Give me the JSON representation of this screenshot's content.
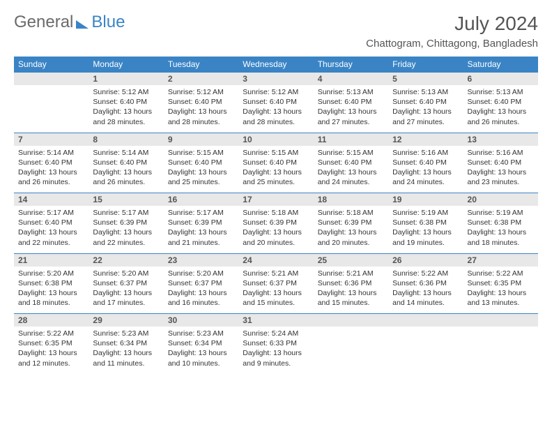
{
  "logo": {
    "part1": "General",
    "part2": "Blue"
  },
  "title": "July 2024",
  "location": "Chattogram, Chittagong, Bangladesh",
  "weekdays": [
    "Sunday",
    "Monday",
    "Tuesday",
    "Wednesday",
    "Thursday",
    "Friday",
    "Saturday"
  ],
  "colors": {
    "header_bg": "#3a84c5",
    "header_text": "#ffffff",
    "daynum_bg": "#e8e8e8",
    "rule": "#3a84c5",
    "text": "#333333",
    "title_text": "#555555"
  },
  "weeks": [
    [
      null,
      {
        "n": "1",
        "sr": "Sunrise: 5:12 AM",
        "ss": "Sunset: 6:40 PM",
        "d1": "Daylight: 13 hours",
        "d2": "and 28 minutes."
      },
      {
        "n": "2",
        "sr": "Sunrise: 5:12 AM",
        "ss": "Sunset: 6:40 PM",
        "d1": "Daylight: 13 hours",
        "d2": "and 28 minutes."
      },
      {
        "n": "3",
        "sr": "Sunrise: 5:12 AM",
        "ss": "Sunset: 6:40 PM",
        "d1": "Daylight: 13 hours",
        "d2": "and 28 minutes."
      },
      {
        "n": "4",
        "sr": "Sunrise: 5:13 AM",
        "ss": "Sunset: 6:40 PM",
        "d1": "Daylight: 13 hours",
        "d2": "and 27 minutes."
      },
      {
        "n": "5",
        "sr": "Sunrise: 5:13 AM",
        "ss": "Sunset: 6:40 PM",
        "d1": "Daylight: 13 hours",
        "d2": "and 27 minutes."
      },
      {
        "n": "6",
        "sr": "Sunrise: 5:13 AM",
        "ss": "Sunset: 6:40 PM",
        "d1": "Daylight: 13 hours",
        "d2": "and 26 minutes."
      }
    ],
    [
      {
        "n": "7",
        "sr": "Sunrise: 5:14 AM",
        "ss": "Sunset: 6:40 PM",
        "d1": "Daylight: 13 hours",
        "d2": "and 26 minutes."
      },
      {
        "n": "8",
        "sr": "Sunrise: 5:14 AM",
        "ss": "Sunset: 6:40 PM",
        "d1": "Daylight: 13 hours",
        "d2": "and 26 minutes."
      },
      {
        "n": "9",
        "sr": "Sunrise: 5:15 AM",
        "ss": "Sunset: 6:40 PM",
        "d1": "Daylight: 13 hours",
        "d2": "and 25 minutes."
      },
      {
        "n": "10",
        "sr": "Sunrise: 5:15 AM",
        "ss": "Sunset: 6:40 PM",
        "d1": "Daylight: 13 hours",
        "d2": "and 25 minutes."
      },
      {
        "n": "11",
        "sr": "Sunrise: 5:15 AM",
        "ss": "Sunset: 6:40 PM",
        "d1": "Daylight: 13 hours",
        "d2": "and 24 minutes."
      },
      {
        "n": "12",
        "sr": "Sunrise: 5:16 AM",
        "ss": "Sunset: 6:40 PM",
        "d1": "Daylight: 13 hours",
        "d2": "and 24 minutes."
      },
      {
        "n": "13",
        "sr": "Sunrise: 5:16 AM",
        "ss": "Sunset: 6:40 PM",
        "d1": "Daylight: 13 hours",
        "d2": "and 23 minutes."
      }
    ],
    [
      {
        "n": "14",
        "sr": "Sunrise: 5:17 AM",
        "ss": "Sunset: 6:40 PM",
        "d1": "Daylight: 13 hours",
        "d2": "and 22 minutes."
      },
      {
        "n": "15",
        "sr": "Sunrise: 5:17 AM",
        "ss": "Sunset: 6:39 PM",
        "d1": "Daylight: 13 hours",
        "d2": "and 22 minutes."
      },
      {
        "n": "16",
        "sr": "Sunrise: 5:17 AM",
        "ss": "Sunset: 6:39 PM",
        "d1": "Daylight: 13 hours",
        "d2": "and 21 minutes."
      },
      {
        "n": "17",
        "sr": "Sunrise: 5:18 AM",
        "ss": "Sunset: 6:39 PM",
        "d1": "Daylight: 13 hours",
        "d2": "and 20 minutes."
      },
      {
        "n": "18",
        "sr": "Sunrise: 5:18 AM",
        "ss": "Sunset: 6:39 PM",
        "d1": "Daylight: 13 hours",
        "d2": "and 20 minutes."
      },
      {
        "n": "19",
        "sr": "Sunrise: 5:19 AM",
        "ss": "Sunset: 6:38 PM",
        "d1": "Daylight: 13 hours",
        "d2": "and 19 minutes."
      },
      {
        "n": "20",
        "sr": "Sunrise: 5:19 AM",
        "ss": "Sunset: 6:38 PM",
        "d1": "Daylight: 13 hours",
        "d2": "and 18 minutes."
      }
    ],
    [
      {
        "n": "21",
        "sr": "Sunrise: 5:20 AM",
        "ss": "Sunset: 6:38 PM",
        "d1": "Daylight: 13 hours",
        "d2": "and 18 minutes."
      },
      {
        "n": "22",
        "sr": "Sunrise: 5:20 AM",
        "ss": "Sunset: 6:37 PM",
        "d1": "Daylight: 13 hours",
        "d2": "and 17 minutes."
      },
      {
        "n": "23",
        "sr": "Sunrise: 5:20 AM",
        "ss": "Sunset: 6:37 PM",
        "d1": "Daylight: 13 hours",
        "d2": "and 16 minutes."
      },
      {
        "n": "24",
        "sr": "Sunrise: 5:21 AM",
        "ss": "Sunset: 6:37 PM",
        "d1": "Daylight: 13 hours",
        "d2": "and 15 minutes."
      },
      {
        "n": "25",
        "sr": "Sunrise: 5:21 AM",
        "ss": "Sunset: 6:36 PM",
        "d1": "Daylight: 13 hours",
        "d2": "and 15 minutes."
      },
      {
        "n": "26",
        "sr": "Sunrise: 5:22 AM",
        "ss": "Sunset: 6:36 PM",
        "d1": "Daylight: 13 hours",
        "d2": "and 14 minutes."
      },
      {
        "n": "27",
        "sr": "Sunrise: 5:22 AM",
        "ss": "Sunset: 6:35 PM",
        "d1": "Daylight: 13 hours",
        "d2": "and 13 minutes."
      }
    ],
    [
      {
        "n": "28",
        "sr": "Sunrise: 5:22 AM",
        "ss": "Sunset: 6:35 PM",
        "d1": "Daylight: 13 hours",
        "d2": "and 12 minutes."
      },
      {
        "n": "29",
        "sr": "Sunrise: 5:23 AM",
        "ss": "Sunset: 6:34 PM",
        "d1": "Daylight: 13 hours",
        "d2": "and 11 minutes."
      },
      {
        "n": "30",
        "sr": "Sunrise: 5:23 AM",
        "ss": "Sunset: 6:34 PM",
        "d1": "Daylight: 13 hours",
        "d2": "and 10 minutes."
      },
      {
        "n": "31",
        "sr": "Sunrise: 5:24 AM",
        "ss": "Sunset: 6:33 PM",
        "d1": "Daylight: 13 hours",
        "d2": "and 9 minutes."
      },
      null,
      null,
      null
    ]
  ]
}
